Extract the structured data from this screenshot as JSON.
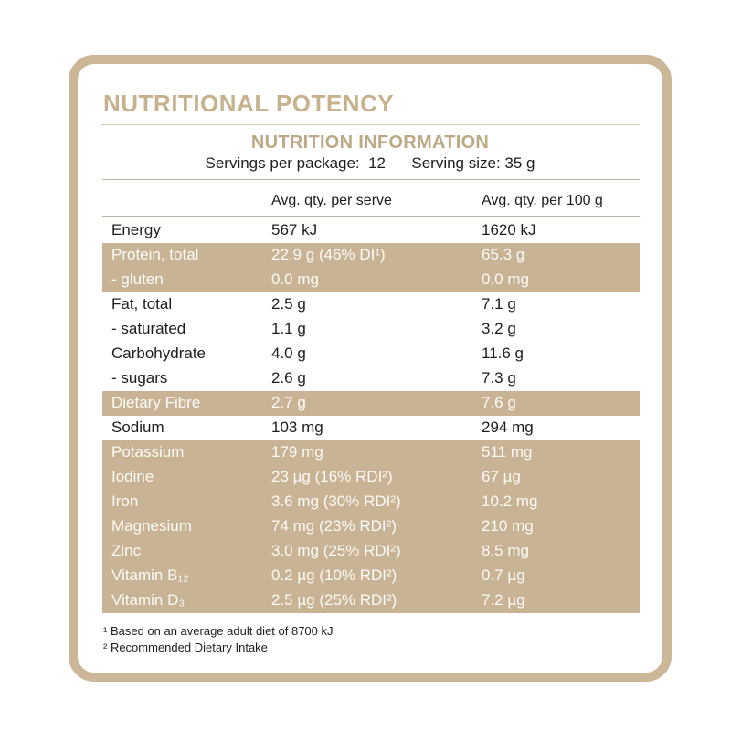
{
  "header": {
    "title": "NUTRITIONAL POTENCY"
  },
  "panel": {
    "title": "NUTRITION INFORMATION",
    "servings_per_package": "Servings per package:  12",
    "serving_size": "Serving size: 35 g"
  },
  "columns": {
    "per_serve": "Avg. qty. per serve",
    "per_100g": "Avg. qty. per 100 g"
  },
  "rows": [
    {
      "name": "Energy",
      "per_serve": "567 kJ",
      "per_100g": "1620 kJ",
      "shaded": false
    },
    {
      "name": "Protein, total",
      "per_serve": "22.9 g (46% DI¹)",
      "per_100g": "65.3 g",
      "shaded": true
    },
    {
      "name": "- gluten",
      "per_serve": "0.0 mg",
      "per_100g": "0.0 mg",
      "shaded": true
    },
    {
      "name": "Fat, total",
      "per_serve": "2.5 g",
      "per_100g": "7.1 g",
      "shaded": false
    },
    {
      "name": "- saturated",
      "per_serve": "1.1 g",
      "per_100g": "3.2 g",
      "shaded": false
    },
    {
      "name": "Carbohydrate",
      "per_serve": "4.0 g",
      "per_100g": "11.6 g",
      "shaded": false
    },
    {
      "name": "- sugars",
      "per_serve": "2.6 g",
      "per_100g": "7.3 g",
      "shaded": false
    },
    {
      "name": "Dietary Fibre",
      "per_serve": "2.7 g",
      "per_100g": "7.6 g",
      "shaded": true
    },
    {
      "name": "Sodium",
      "per_serve": "103 mg",
      "per_100g": "294 mg",
      "shaded": false
    },
    {
      "name": "Potassium",
      "per_serve": "179 mg",
      "per_100g": "511 mg",
      "shaded": true
    },
    {
      "name": "Iodine",
      "per_serve": "23 µg (16% RDI²)",
      "per_100g": "67 µg",
      "shaded": true
    },
    {
      "name": "Iron",
      "per_serve": "3.6 mg (30% RDI²)",
      "per_100g": "10.2 mg",
      "shaded": true
    },
    {
      "name": "Magnesium",
      "per_serve": "74 mg (23% RDI²)",
      "per_100g": "210 mg",
      "shaded": true
    },
    {
      "name": "Zinc",
      "per_serve": "3.0 mg (25% RDI²)",
      "per_100g": "8.5 mg",
      "shaded": true
    },
    {
      "name": "Vitamin B₁₂",
      "per_serve": "0.2 µg (10% RDI²)",
      "per_100g": "0.7 µg",
      "shaded": true
    },
    {
      "name": "Vitamin D₃",
      "per_serve": "2.5 µg (25% RDI²)",
      "per_100g": "7.2 µg",
      "shaded": true
    }
  ],
  "footnotes": {
    "note1": "¹ Based on an average adult diet of 8700 kJ",
    "note2": "² Recommended Dietary Intake"
  },
  "colors": {
    "border": "#cbb797",
    "heading": "#c8b18d",
    "shaded_row": "#c8b495"
  }
}
